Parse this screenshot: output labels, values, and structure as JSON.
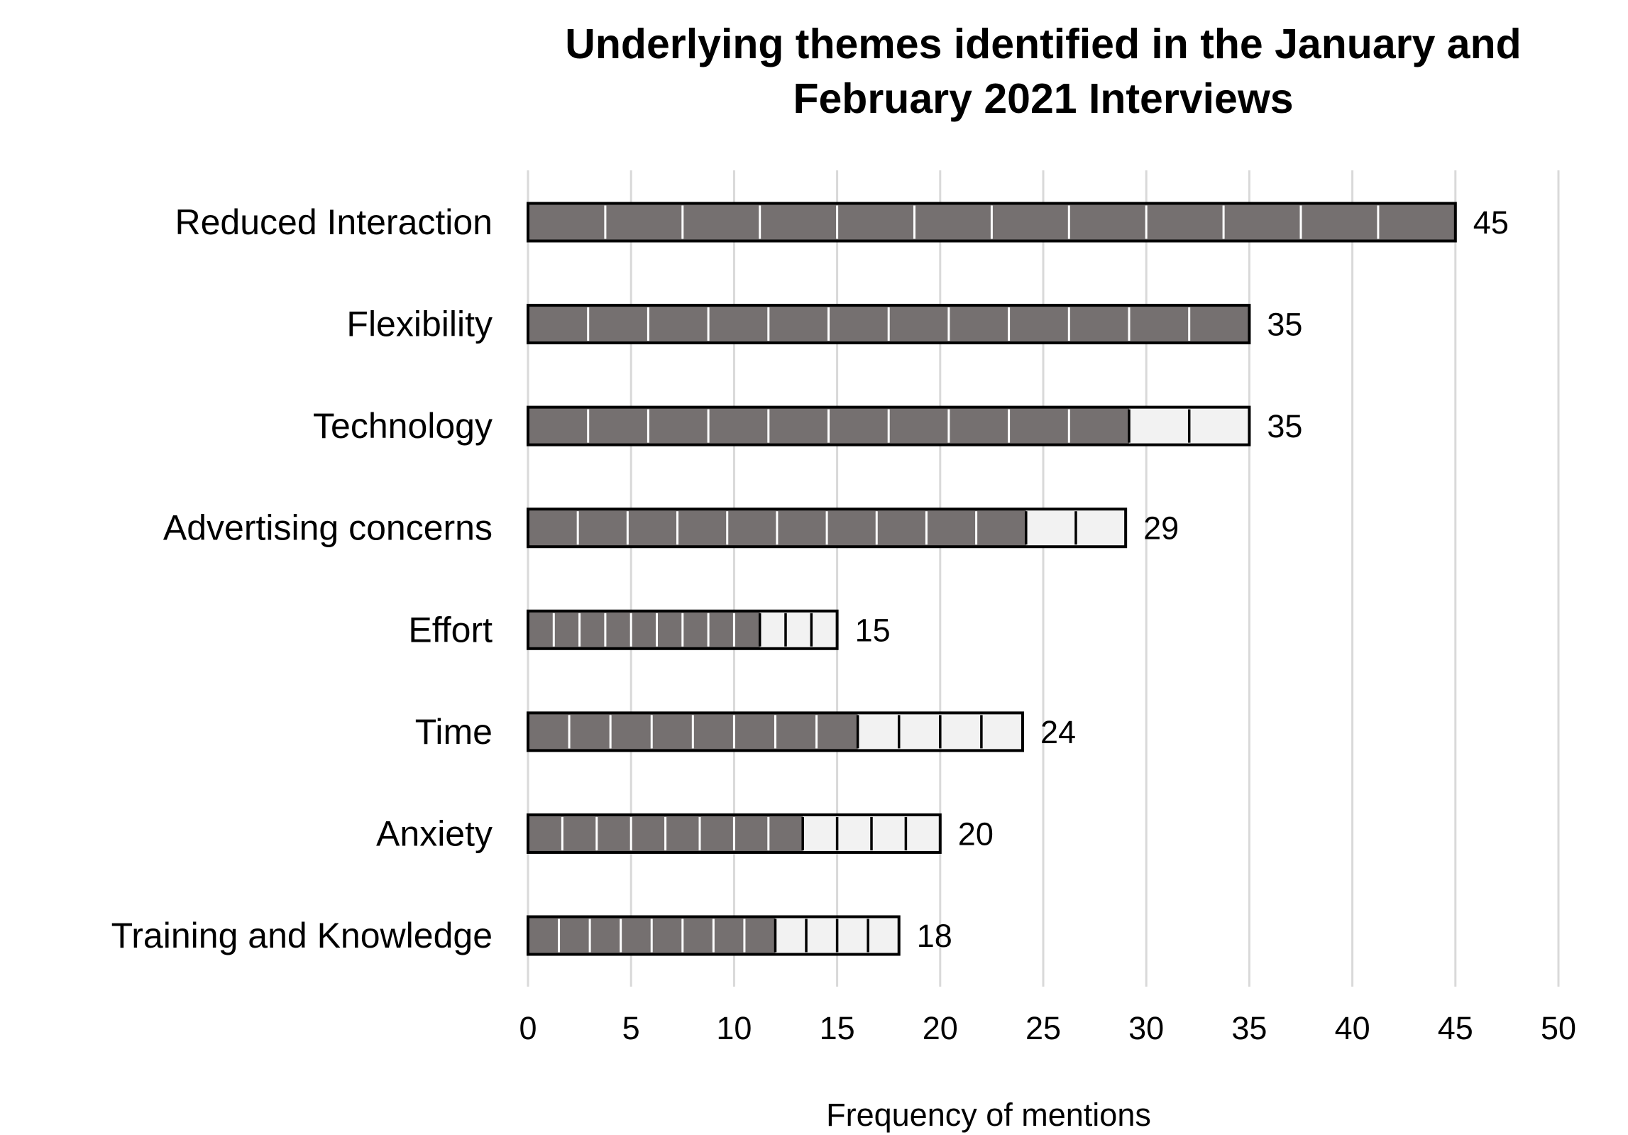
{
  "chart_data": {
    "type": "bar",
    "orientation": "horizontal",
    "title_lines": [
      "Underlying themes identified in the January and",
      "February 2021 Interviews"
    ],
    "xlabel": "Frequency of mentions",
    "ylabel": "",
    "xlim": [
      0,
      50
    ],
    "xticks": [
      0,
      5,
      10,
      15,
      20,
      25,
      30,
      35,
      40,
      45,
      50
    ],
    "grid": "vertical",
    "categories": [
      "Reduced Interaction",
      "Flexibility",
      "Technology",
      "Advertising concerns",
      "Effort",
      "Time",
      "Anxiety",
      "Training and Knowledge"
    ],
    "values": [
      45,
      35,
      35,
      29,
      15,
      24,
      20,
      18
    ],
    "segments_per_bar": 12,
    "dark_segments": [
      12,
      12,
      10,
      10,
      9,
      8,
      8,
      8
    ],
    "colors": {
      "dark": "#757070",
      "light": "#f2f2f2",
      "outline": "#000000",
      "grid": "#d9d9d9"
    }
  }
}
